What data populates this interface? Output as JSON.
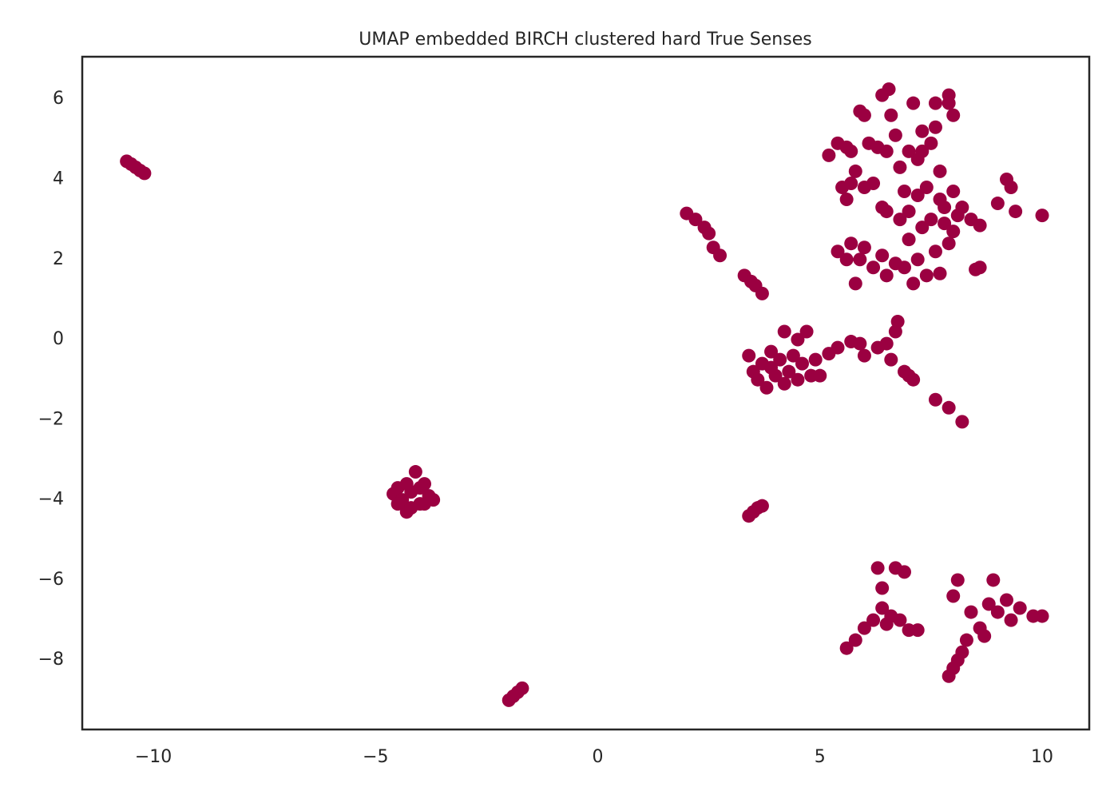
{
  "chart_data": {
    "type": "scatter",
    "title": "UMAP embedded BIRCH clustered hard True Senses",
    "color": "#9b0041",
    "x": [
      -10.6,
      -10.5,
      -10.4,
      -10.3,
      -10.2,
      -4.6,
      -4.5,
      -4.4,
      -4.3,
      -4.2,
      -4.1,
      -4.0,
      -3.9,
      -3.8,
      -3.7,
      -4.3,
      -4.0,
      -4.2,
      -3.9,
      -4.5,
      -2.0,
      -1.9,
      -1.8,
      -1.7,
      2.0,
      2.2,
      2.4,
      2.5,
      2.6,
      2.75,
      3.3,
      3.45,
      3.55,
      3.7,
      3.4,
      3.5,
      3.6,
      3.7,
      3.4,
      3.5,
      3.6,
      3.7,
      3.8,
      3.9,
      4.0,
      4.1,
      4.2,
      4.3,
      4.4,
      4.5,
      4.6,
      4.7,
      4.8,
      4.9,
      5.0,
      4.5,
      3.9,
      4.2,
      5.2,
      5.4,
      5.7,
      5.9,
      6.0,
      6.3,
      6.5,
      6.7,
      6.75,
      6.6,
      6.9,
      7.0,
      7.1,
      7.6,
      7.9,
      8.2,
      5.5,
      5.6,
      5.7,
      5.8,
      5.9,
      6.0,
      6.1,
      6.2,
      6.3,
      6.4,
      6.5,
      6.4,
      6.55,
      6.6,
      6.7,
      6.8,
      6.9,
      7.0,
      7.1,
      7.2,
      7.3,
      7.4,
      7.5,
      7.6,
      7.7,
      7.8,
      7.9,
      8.0,
      7.9,
      8.0,
      8.2,
      8.4,
      8.6,
      8.5,
      8.6,
      9.0,
      9.2,
      9.3,
      9.4,
      10.0,
      5.4,
      5.6,
      5.7,
      5.8,
      5.9,
      6.0,
      6.2,
      6.4,
      6.5,
      6.7,
      6.9,
      7.0,
      7.2,
      7.1,
      7.3,
      7.4,
      7.6,
      7.7,
      7.8,
      7.9,
      8.0,
      8.1,
      7.5,
      7.7,
      7.2,
      6.5,
      6.0,
      5.7,
      6.8,
      7.0,
      5.2,
      5.4,
      5.6,
      7.3,
      7.6,
      5.6,
      5.8,
      6.0,
      6.2,
      6.3,
      6.4,
      6.4,
      6.5,
      6.6,
      6.7,
      6.9,
      6.8,
      7.0,
      7.2,
      7.9,
      8.0,
      8.1,
      8.2,
      8.3,
      8.6,
      8.7,
      8.4,
      8.0,
      8.1,
      8.9,
      8.8,
      9.0,
      9.2,
      9.3,
      9.8,
      10.0,
      9.5
    ],
    "values": [
      4.45,
      4.38,
      4.3,
      4.22,
      4.15,
      -3.85,
      -3.7,
      -4.0,
      -4.3,
      -3.8,
      -3.3,
      -4.1,
      -3.6,
      -3.9,
      -4.0,
      -3.6,
      -3.7,
      -4.2,
      -4.1,
      -4.1,
      -9.0,
      -8.9,
      -8.8,
      -8.7,
      3.15,
      3.0,
      2.8,
      2.65,
      2.3,
      2.1,
      1.6,
      1.45,
      1.35,
      1.15,
      -4.4,
      -4.3,
      -4.2,
      -4.15,
      -0.4,
      -0.8,
      -1.0,
      -0.6,
      -1.2,
      -0.3,
      -0.9,
      -0.5,
      0.2,
      -0.8,
      -0.4,
      -1.0,
      -0.6,
      0.2,
      -0.9,
      -0.5,
      -0.9,
      0.0,
      -0.7,
      -1.1,
      -0.35,
      -0.2,
      -0.05,
      -0.1,
      -0.4,
      -0.2,
      -0.1,
      0.2,
      0.45,
      -0.5,
      -0.8,
      -0.9,
      -1.0,
      -1.5,
      -1.7,
      -2.05,
      3.8,
      3.5,
      4.7,
      4.2,
      5.7,
      5.6,
      4.9,
      3.9,
      4.8,
      3.3,
      4.7,
      6.1,
      6.25,
      5.6,
      5.1,
      4.3,
      3.7,
      4.7,
      5.9,
      4.5,
      5.2,
      3.8,
      4.9,
      5.9,
      4.2,
      3.3,
      6.1,
      5.6,
      5.9,
      3.7,
      3.3,
      3.0,
      2.85,
      1.75,
      1.8,
      3.4,
      4.0,
      3.8,
      3.2,
      3.1,
      2.2,
      2.0,
      2.4,
      1.4,
      2.0,
      2.3,
      1.8,
      2.1,
      1.6,
      1.9,
      1.8,
      2.5,
      2.0,
      1.4,
      2.8,
      1.6,
      2.2,
      1.65,
      2.9,
      2.4,
      2.7,
      3.1,
      3.0,
      3.5,
      3.6,
      3.2,
      3.8,
      3.9,
      3.0,
      3.2,
      4.6,
      4.9,
      4.8,
      4.7,
      5.3,
      -7.7,
      -7.5,
      -7.2,
      -7.0,
      -5.7,
      -6.2,
      -6.7,
      -7.1,
      -6.9,
      -5.7,
      -5.8,
      -7.0,
      -7.25,
      -7.25,
      -8.4,
      -8.2,
      -8.0,
      -7.8,
      -7.5,
      -7.2,
      -7.4,
      -6.8,
      -6.4,
      -6.0,
      -6.0,
      -6.6,
      -6.8,
      -6.5,
      -7.0,
      -6.9,
      -6.9,
      -6.7
    ],
    "xlim": [
      -11.6,
      11.06
    ],
    "ylim": [
      -9.73,
      7.06
    ],
    "xticks": [
      {
        "value": -10,
        "label": "−10"
      },
      {
        "value": -5,
        "label": "−5"
      },
      0,
      5,
      10
    ],
    "yticks": [
      {
        "value": -8,
        "label": "−8"
      },
      {
        "value": -6,
        "label": "−6"
      },
      {
        "value": -4,
        "label": "−4"
      },
      {
        "value": -2,
        "label": "−2"
      },
      0,
      2,
      4,
      6
    ],
    "grid": false
  }
}
